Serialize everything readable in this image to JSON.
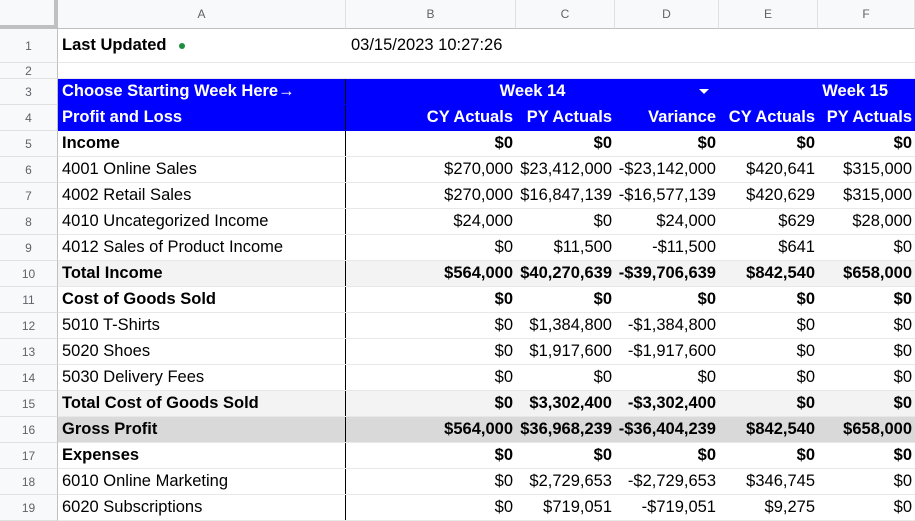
{
  "columns": [
    "A",
    "B",
    "C",
    "D",
    "E",
    "F"
  ],
  "last_updated_label": "Last Updated",
  "last_updated_value": "03/15/2023 10:27:26",
  "choose_week_label": "Choose Starting Week Here→",
  "week14": "Week 14",
  "week15": "Week 15",
  "pl_label": "Profit and Loss",
  "headers": {
    "cy": "CY Actuals",
    "py": "PY Actuals",
    "variance": "Variance",
    "cy2": "CY Actuals",
    "py2": "PY Actuals"
  },
  "rows": [
    {
      "label": "Income",
      "b": "$0",
      "c": "$0",
      "d": "$0",
      "e": "$0",
      "f": "$0"
    },
    {
      "label": "4001 Online Sales",
      "b": "$270,000",
      "c": "$23,412,000",
      "d": "-$23,142,000",
      "e": "$420,641",
      "f": "$315,000"
    },
    {
      "label": "4002 Retail Sales",
      "b": "$270,000",
      "c": "$16,847,139",
      "d": "-$16,577,139",
      "e": "$420,629",
      "f": "$315,000"
    },
    {
      "label": "4010 Uncategorized Income",
      "b": "$24,000",
      "c": "$0",
      "d": "$24,000",
      "e": "$629",
      "f": "$28,000"
    },
    {
      "label": "4012 Sales of Product Income",
      "b": "$0",
      "c": "$11,500",
      "d": "-$11,500",
      "e": "$641",
      "f": "$0"
    },
    {
      "label": "Total Income",
      "b": "$564,000",
      "c": "$40,270,639",
      "d": "-$39,706,639",
      "e": "$842,540",
      "f": "$658,000"
    },
    {
      "label": "Cost of Goods Sold",
      "b": "$0",
      "c": "$0",
      "d": "$0",
      "e": "$0",
      "f": "$0"
    },
    {
      "label": "5010 T-Shirts",
      "b": "$0",
      "c": "$1,384,800",
      "d": "-$1,384,800",
      "e": "$0",
      "f": "$0"
    },
    {
      "label": "5020 Shoes",
      "b": "$0",
      "c": "$1,917,600",
      "d": "-$1,917,600",
      "e": "$0",
      "f": "$0"
    },
    {
      "label": "5030 Delivery Fees",
      "b": "$0",
      "c": "$0",
      "d": "$0",
      "e": "$0",
      "f": "$0"
    },
    {
      "label": "Total Cost of Goods Sold",
      "b": "$0",
      "c": "$3,302,400",
      "d": "-$3,302,400",
      "e": "$0",
      "f": "$0"
    },
    {
      "label": "Gross Profit",
      "b": "$564,000",
      "c": "$36,968,239",
      "d": "-$36,404,239",
      "e": "$842,540",
      "f": "$658,000"
    },
    {
      "label": "Expenses",
      "b": "$0",
      "c": "$0",
      "d": "$0",
      "e": "$0",
      "f": "$0"
    },
    {
      "label": "6010 Online Marketing",
      "b": "$0",
      "c": "$2,729,653",
      "d": "-$2,729,653",
      "e": "$346,745",
      "f": "$0"
    },
    {
      "label": "6020 Subscriptions",
      "b": "$0",
      "c": "$719,051",
      "d": "-$719,051",
      "e": "$9,275",
      "f": "$0"
    }
  ]
}
